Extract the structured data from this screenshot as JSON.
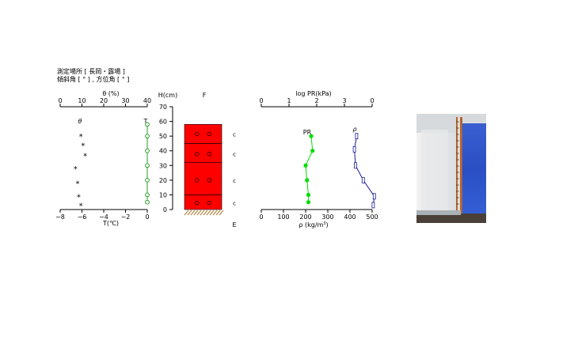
{
  "header": {
    "line1": "測定場所 [ 長岡・露場 ]",
    "line2": "傾斜角 [ ° ] , 方位角 [ ° ]"
  },
  "colors": {
    "temperature": "#2e9e2e",
    "hardness": "#00dd00",
    "density": "#1a1a9c",
    "snow_layer": "#ff0000",
    "ground": "#b07a30",
    "photo_snow_blue": "#2f52c9"
  },
  "chart_data": [
    {
      "id": "temperature",
      "type": "scatter",
      "top_axis": {
        "label": "θ (%)",
        "ticks": [
          "0",
          "10",
          "20",
          "30",
          "40"
        ],
        "range": [
          0,
          40
        ]
      },
      "bottom_axis": {
        "label": "T(℃)",
        "ticks": [
          "−8",
          "−6",
          "−4",
          "−2",
          "0"
        ],
        "range": [
          -8,
          0
        ]
      },
      "moisture_series": {
        "name": "θ",
        "marker": "*",
        "points": [
          {
            "h": 50,
            "theta": 9.5
          },
          {
            "h": 44,
            "theta": 10.5
          },
          {
            "h": 37,
            "theta": 11.5
          },
          {
            "h": 28,
            "theta": 7.0
          },
          {
            "h": 18,
            "theta": 8.0
          },
          {
            "h": 9,
            "theta": 8.5
          },
          {
            "h": 3,
            "theta": 9.5
          }
        ]
      },
      "temperature_series": {
        "name": "T",
        "points": [
          {
            "h": 58,
            "t": 0
          },
          {
            "h": 50,
            "t": 0
          },
          {
            "h": 40,
            "t": 0
          },
          {
            "h": 30,
            "t": 0
          },
          {
            "h": 20,
            "t": 0
          },
          {
            "h": 10,
            "t": 0
          },
          {
            "h": 5,
            "t": 0
          }
        ]
      }
    },
    {
      "id": "stratigraphy",
      "type": "bar",
      "ylabel": "H(cm)",
      "yticks": [
        "0",
        "10",
        "20",
        "30",
        "40",
        "50",
        "60",
        "70"
      ],
      "ylim": [
        0,
        70
      ],
      "column_label": "F",
      "layers": [
        {
          "bottom": 0,
          "top": 10,
          "dots": 2,
          "grain": "c"
        },
        {
          "bottom": 10,
          "top": 32,
          "dots": 2,
          "grain": "c"
        },
        {
          "bottom": 32,
          "top": 45,
          "dots": 2,
          "grain": "c"
        },
        {
          "bottom": 45,
          "top": 58,
          "dots": 2,
          "grain": "c"
        }
      ],
      "bottom_label": "E"
    },
    {
      "id": "hardness_density",
      "type": "line",
      "top_axis": {
        "label": "log PR(kPa)",
        "ticks": [
          "0",
          "1",
          "2",
          "3",
          "0"
        ],
        "range": [
          0,
          4
        ]
      },
      "bottom_axis": {
        "label": "ρ (kg/m³)",
        "ticks": [
          "0",
          "100",
          "200",
          "300",
          "400",
          "500"
        ],
        "range": [
          0,
          500
        ]
      },
      "hardness_series": {
        "name": "PR",
        "points": [
          {
            "h": 50,
            "pr": 1.8
          },
          {
            "h": 40,
            "pr": 1.85
          },
          {
            "h": 30,
            "pr": 1.6
          },
          {
            "h": 20,
            "pr": 1.65
          },
          {
            "h": 10,
            "pr": 1.7
          },
          {
            "h": 5,
            "pr": 1.7
          }
        ]
      },
      "density_series": {
        "name": "ρ",
        "points": [
          {
            "h": 50,
            "rho": 430
          },
          {
            "h": 41,
            "rho": 420
          },
          {
            "h": 30,
            "rho": 425
          },
          {
            "h": 20,
            "rho": 460
          },
          {
            "h": 9,
            "rho": 510
          },
          {
            "h": 3,
            "rho": 505
          }
        ]
      }
    }
  ]
}
